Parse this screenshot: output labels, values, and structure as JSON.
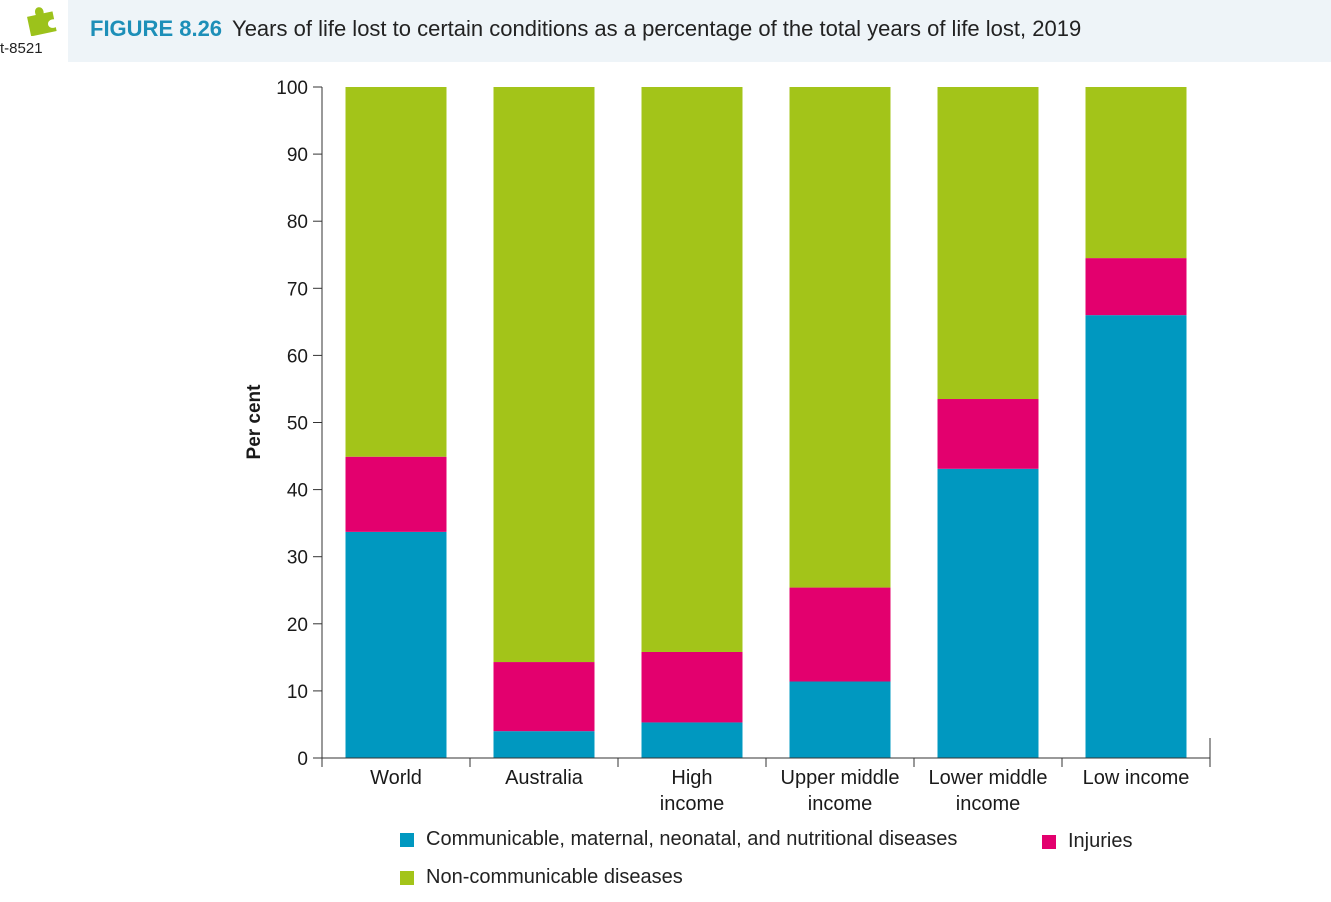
{
  "page_ref": "t-8521",
  "figure": {
    "label": "FIGURE 8.26",
    "title": "Years of life lost to certain conditions as a percentage of the total years of life lost, 2019"
  },
  "icon": "puzzle-piece-icon",
  "colors": {
    "communicable": "#0098c0",
    "injuries": "#e3006e",
    "noncommunicable": "#a3c419",
    "figure_label": "#1d8fb8"
  },
  "chart_data": {
    "type": "bar",
    "stacked": true,
    "categories": [
      "World",
      "Australia",
      "High income",
      "Upper middle income",
      "Lower middle income",
      "Low income"
    ],
    "category_lines": [
      [
        "World"
      ],
      [
        "Australia"
      ],
      [
        "High",
        "income"
      ],
      [
        "Upper middle",
        "income"
      ],
      [
        "Lower middle",
        "income"
      ],
      [
        "Low income"
      ]
    ],
    "series": [
      {
        "name": "Communicable, maternal, neonatal, and nutritional diseases",
        "key": "communicable",
        "values": [
          33.7,
          4.0,
          5.3,
          11.4,
          43.1,
          66.0
        ]
      },
      {
        "name": "Injuries",
        "key": "injuries",
        "values": [
          11.2,
          10.3,
          10.5,
          14.0,
          10.4,
          8.5
        ]
      },
      {
        "name": "Non-communicable diseases",
        "key": "noncommunicable",
        "values": [
          55.1,
          85.7,
          84.2,
          74.6,
          46.5,
          25.5
        ]
      }
    ],
    "ylabel": "Per cent",
    "xlabel": "",
    "ylim": [
      0,
      100
    ],
    "yticks": [
      0,
      10,
      20,
      30,
      40,
      50,
      60,
      70,
      80,
      90,
      100
    ],
    "grid": false,
    "legend_position": "bottom"
  }
}
